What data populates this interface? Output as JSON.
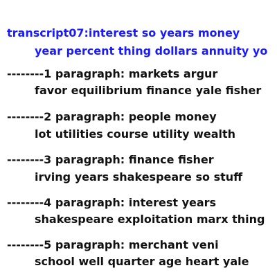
{
  "transcript": {
    "title": "transcript07:interest so years money",
    "subtitle": "year percent thing dollars annuity yo"
  },
  "paragraphs": [
    {
      "heading": "--------1 paragraph: markets argur",
      "keywords": "favor equilibrium finance yale fisher"
    },
    {
      "heading": "--------2 paragraph: people money",
      "keywords": "lot utilities course utility wealth"
    },
    {
      "heading": "--------3 paragraph: finance fisher",
      "keywords": "irving years shakespeare so stuff"
    },
    {
      "heading": "--------4 paragraph: interest years",
      "keywords": "shakespeare exploitation marx thing"
    },
    {
      "heading": "--------5 paragraph: merchant veni",
      "keywords": "school well quarter age heart yale"
    }
  ],
  "colors": {
    "title": "#1a1aff",
    "text": "#111111",
    "background": "#ffffff"
  }
}
